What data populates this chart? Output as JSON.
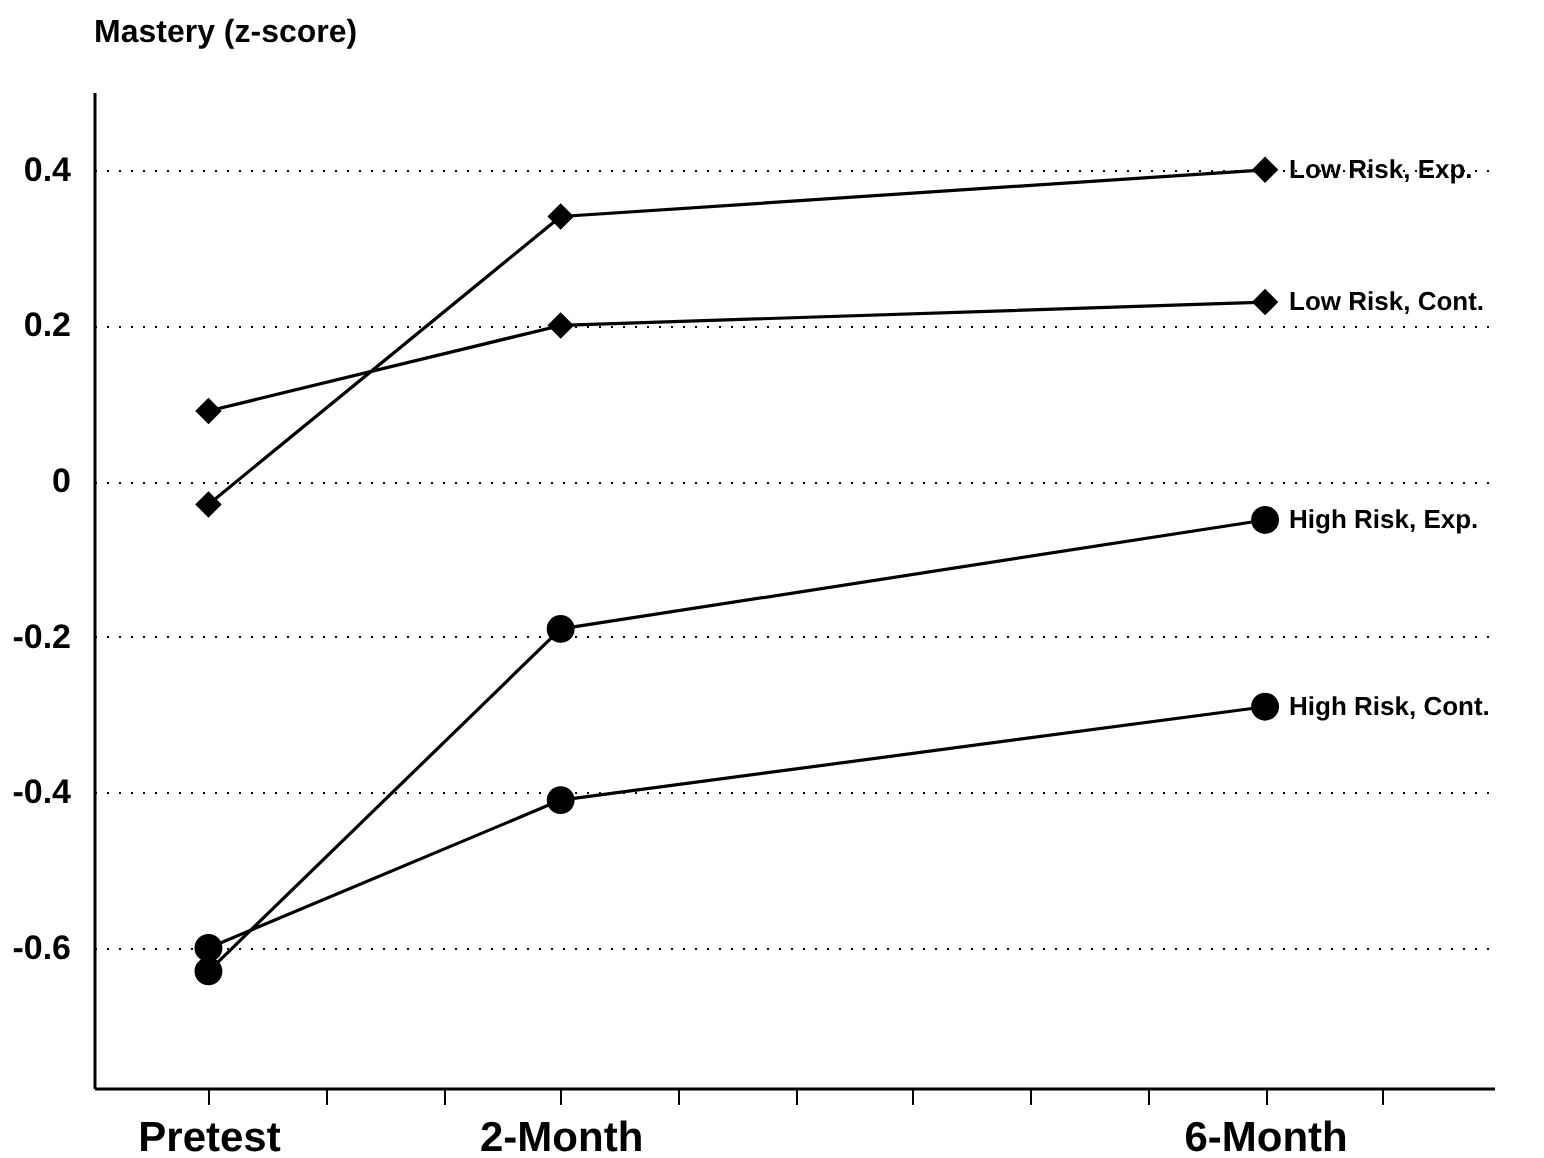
{
  "chart_data": {
    "type": "line",
    "ylabel": "Mastery (z-score)",
    "x": [
      0,
      2,
      6
    ],
    "xlim": [
      -0.65,
      7.3
    ],
    "xticks": [
      {
        "value": 0,
        "label": "Pretest"
      },
      {
        "value": 0.6667,
        "label": null
      },
      {
        "value": 1.3333,
        "label": null
      },
      {
        "value": 2,
        "label": "2-Month"
      },
      {
        "value": 2.6667,
        "label": null
      },
      {
        "value": 3.3333,
        "label": null
      },
      {
        "value": 4,
        "label": null
      },
      {
        "value": 4.6667,
        "label": null
      },
      {
        "value": 5.3333,
        "label": null
      },
      {
        "value": 6,
        "label": "6-Month"
      },
      {
        "value": 6.6667,
        "label": null
      }
    ],
    "ylim": [
      -0.78,
      0.5
    ],
    "yticks": [
      -0.6,
      -0.4,
      -0.2,
      0,
      0.2,
      0.4
    ],
    "grid": "y",
    "legend": false,
    "line_style": "solid",
    "series": [
      {
        "name": "Low Risk, Exp.",
        "color": "#000000",
        "marker": "diamond",
        "values": [
          -0.03,
          0.34,
          0.4
        ]
      },
      {
        "name": "Low Risk, Cont.",
        "color": "#000000",
        "marker": "diamond",
        "values": [
          0.09,
          0.2,
          0.23
        ]
      },
      {
        "name": "High Risk, Exp.",
        "color": "#000000",
        "marker": "circle",
        "values": [
          -0.63,
          -0.19,
          -0.05
        ]
      },
      {
        "name": "High Risk, Cont.",
        "color": "#000000",
        "marker": "circle",
        "values": [
          -0.6,
          -0.41,
          -0.29
        ]
      }
    ]
  }
}
